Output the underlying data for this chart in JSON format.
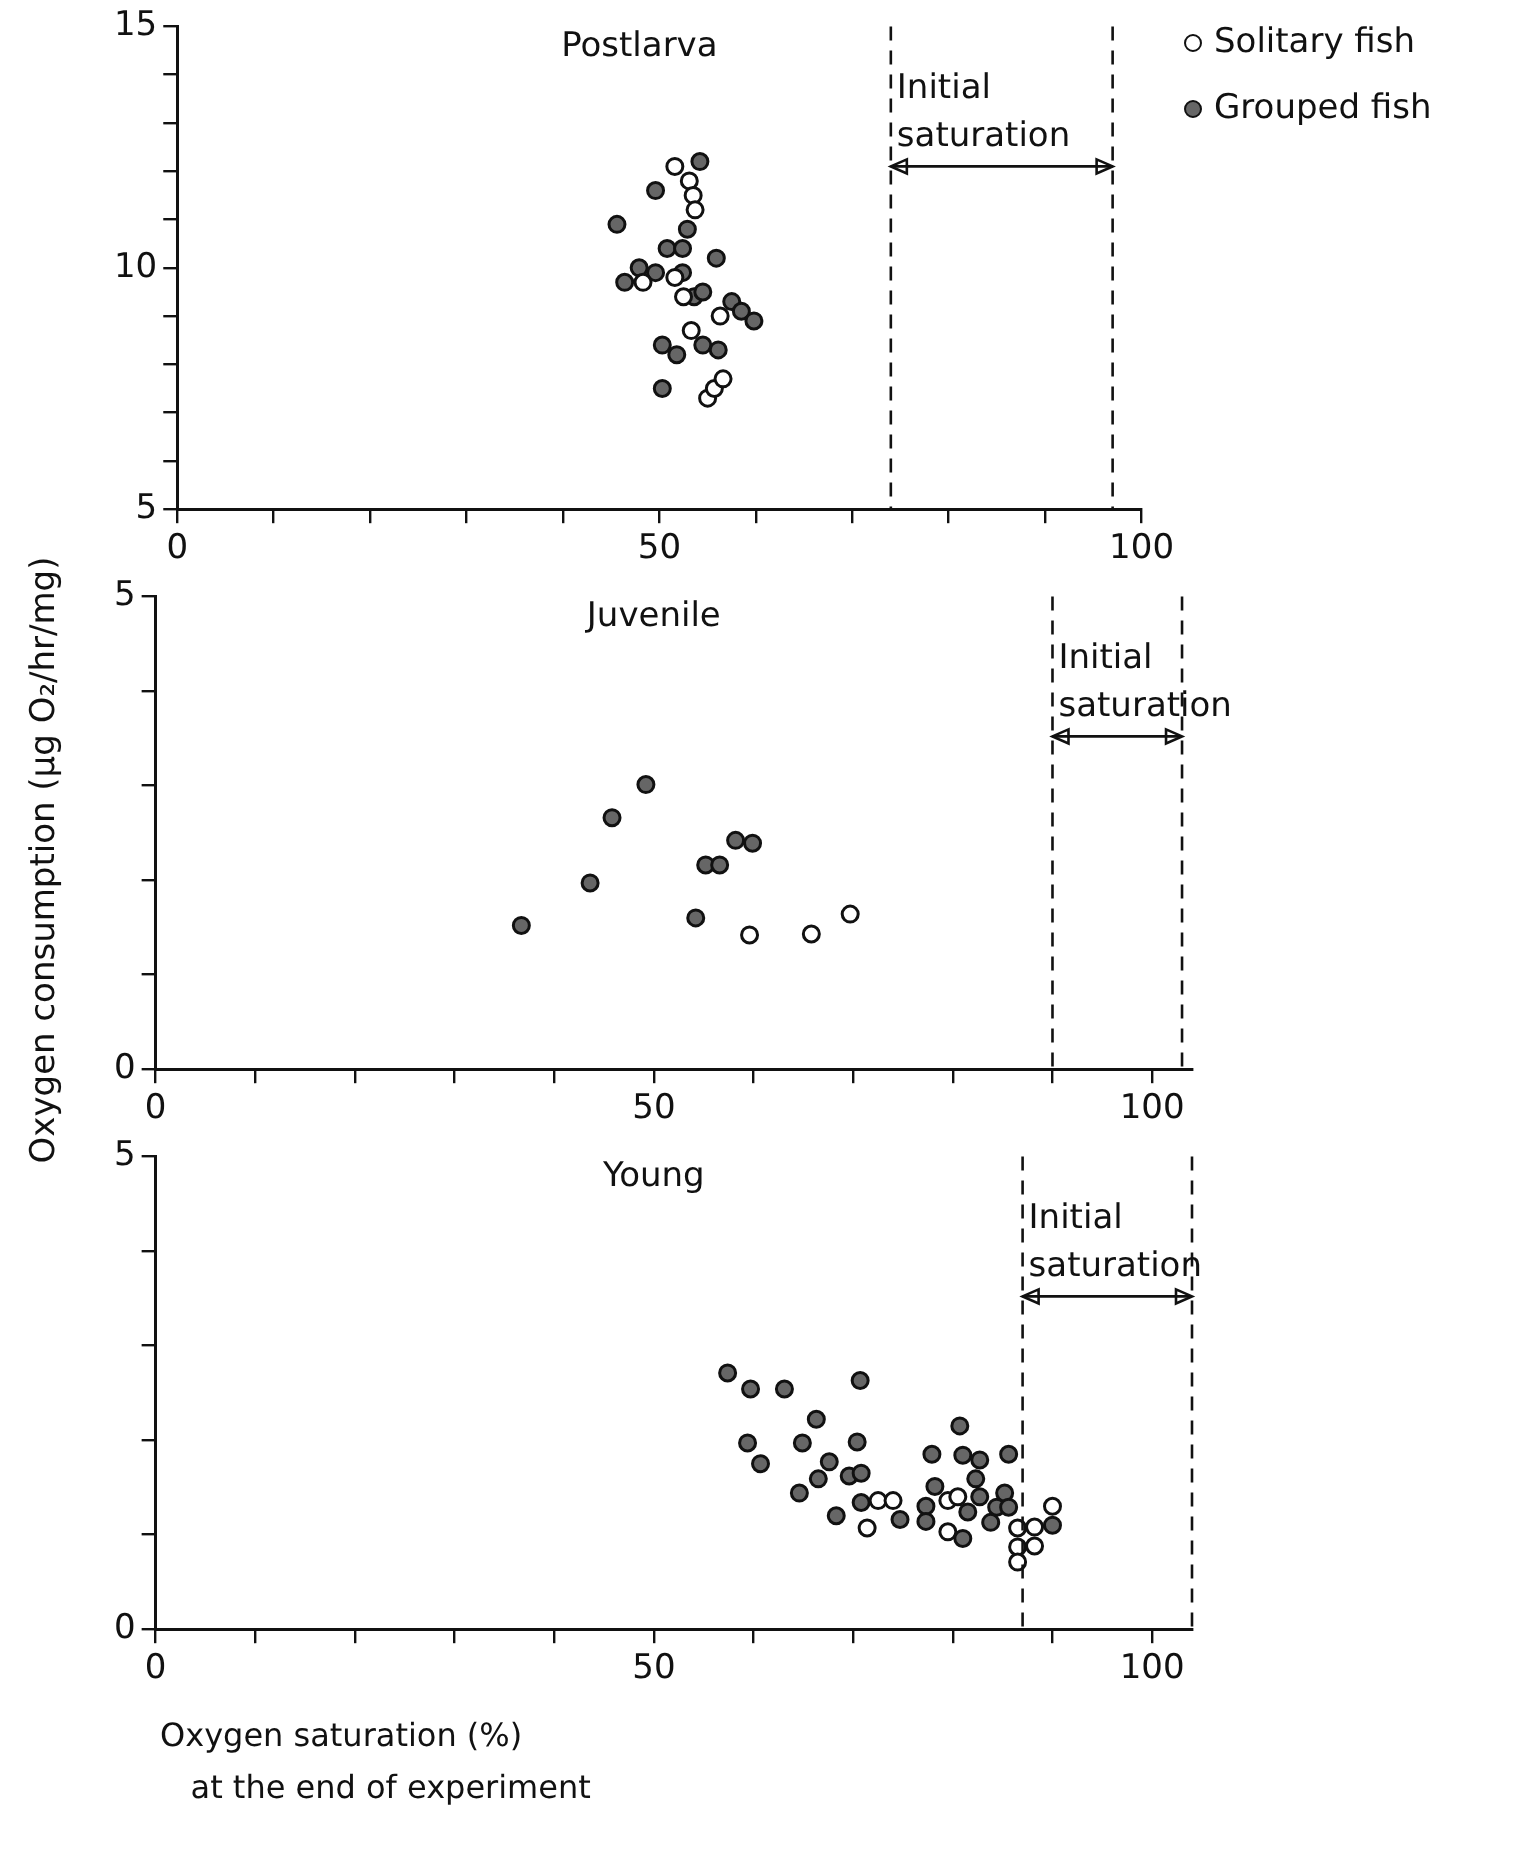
{
  "chart_data": [
    {
      "type": "scatter",
      "title": "Postlarva",
      "marker": "circle",
      "legend": "top right",
      "xlim": [
        0,
        100
      ],
      "xticks": [
        0,
        {
          "value": 10,
          "label": null
        },
        {
          "value": 20,
          "label": null
        },
        {
          "value": 30,
          "label": null
        },
        {
          "value": 40,
          "label": null
        },
        50,
        {
          "value": 60,
          "label": null
        },
        {
          "value": 70,
          "label": null
        },
        {
          "value": 80,
          "label": null
        },
        {
          "value": 90,
          "label": null
        },
        100
      ],
      "ylim": [
        5,
        15
      ],
      "yticks": [
        5,
        {
          "value": 6,
          "label": null
        },
        {
          "value": 7,
          "label": null
        },
        {
          "value": 8,
          "label": null
        },
        {
          "value": 9,
          "label": null
        },
        10,
        {
          "value": 11,
          "label": null
        },
        {
          "value": 12,
          "label": null
        },
        {
          "value": 13,
          "label": null
        },
        {
          "value": 14,
          "label": null
        },
        15
      ],
      "ref_lines": [
        {
          "axis": "x",
          "value": 74,
          "label": "Initial saturation",
          "line_style": "dashed"
        },
        {
          "axis": "x",
          "value": 97,
          "line_style": "dashed"
        }
      ],
      "series": [
        {
          "name": "Solitary fish",
          "color": "#ffffff",
          "x": [
            51.6,
            53.1,
            53.5,
            53.7,
            48.3,
            51.6,
            52.5,
            56.3,
            53.3,
            55.0,
            55.7,
            56.6
          ],
          "values": [
            12.1,
            11.8,
            11.5,
            11.2,
            9.7,
            9.8,
            9.4,
            9.0,
            8.7,
            7.3,
            7.5,
            7.7
          ]
        },
        {
          "name": "Grouped fish",
          "color": "#666666",
          "x": [
            54.2,
            49.6,
            45.6,
            52.9,
            50.8,
            52.4,
            55.9,
            47.9,
            49.6,
            46.4,
            52.4,
            53.6,
            54.5,
            57.5,
            58.5,
            59.8,
            50.3,
            51.8,
            54.5,
            56.1,
            50.3
          ],
          "values": [
            12.2,
            11.6,
            10.9,
            10.8,
            10.4,
            10.4,
            10.2,
            10.0,
            9.9,
            9.7,
            9.9,
            9.4,
            9.5,
            9.3,
            9.1,
            8.9,
            8.4,
            8.2,
            8.4,
            8.3,
            7.5
          ]
        }
      ]
    },
    {
      "type": "scatter",
      "title": "Juvenile",
      "marker": "circle",
      "ylabel": "Oxygen consumption (μg O₂/hr/mg)",
      "xlim": [
        0,
        104
      ],
      "xticks": [
        0,
        {
          "value": 10,
          "label": null
        },
        {
          "value": 20,
          "label": null
        },
        {
          "value": 30,
          "label": null
        },
        {
          "value": 40,
          "label": null
        },
        50,
        {
          "value": 60,
          "label": null
        },
        {
          "value": 70,
          "label": null
        },
        {
          "value": 80,
          "label": null
        },
        {
          "value": 90,
          "label": null
        },
        100
      ],
      "ylim": [
        0,
        5
      ],
      "yticks": [
        0,
        {
          "value": 1,
          "label": null
        },
        {
          "value": 2,
          "label": null
        },
        {
          "value": 3,
          "label": null
        },
        {
          "value": 4,
          "label": null
        },
        5
      ],
      "ref_lines": [
        {
          "axis": "x",
          "value": 90,
          "label": "Initial saturation",
          "line_style": "dashed"
        },
        {
          "axis": "x",
          "value": 103,
          "line_style": "dashed"
        }
      ],
      "series": [
        {
          "color": "#ffffff",
          "x": [
            59.6,
            65.8,
            69.7
          ],
          "values": [
            1.42,
            1.43,
            1.64
          ]
        },
        {
          "color": "#666666",
          "x": [
            36.7,
            43.6,
            45.8,
            49.2,
            55.2,
            56.6,
            58.2,
            59.9,
            54.2
          ],
          "values": [
            1.52,
            1.97,
            2.66,
            3.01,
            2.16,
            2.16,
            2.42,
            2.39,
            1.6
          ]
        }
      ]
    },
    {
      "type": "scatter",
      "title": "Young",
      "marker": "circle",
      "xlabel": "Oxygen saturation (%)\n   at the end of experiment",
      "xlim": [
        0,
        104
      ],
      "xticks": [
        0,
        {
          "value": 10,
          "label": null
        },
        {
          "value": 20,
          "label": null
        },
        {
          "value": 30,
          "label": null
        },
        {
          "value": 40,
          "label": null
        },
        50,
        {
          "value": 60,
          "label": null
        },
        {
          "value": 70,
          "label": null
        },
        {
          "value": 80,
          "label": null
        },
        {
          "value": 90,
          "label": null
        },
        100
      ],
      "ylim": [
        0,
        5
      ],
      "yticks": [
        0,
        {
          "value": 1,
          "label": null
        },
        {
          "value": 2,
          "label": null
        },
        {
          "value": 3,
          "label": null
        },
        {
          "value": 4,
          "label": null
        },
        5
      ],
      "ref_lines": [
        {
          "axis": "x",
          "value": 87,
          "label": "Initial saturation",
          "line_style": "dashed"
        },
        {
          "axis": "x",
          "value": 104,
          "line_style": "dashed"
        }
      ],
      "series": [
        {
          "color": "#ffffff",
          "x": [
            72.5,
            74.0,
            71.4,
            79.5,
            80.5,
            79.5,
            86.5,
            86.5,
            86.5,
            88.2,
            88.2,
            90.0
          ],
          "values": [
            1.36,
            1.36,
            1.07,
            1.36,
            1.4,
            1.03,
            1.07,
            0.87,
            0.71,
            1.08,
            0.88,
            1.3
          ]
        },
        {
          "color": "#666666",
          "x": [
            57.4,
            59.7,
            63.1,
            70.7,
            66.3,
            59.4,
            60.7,
            64.9,
            70.4,
            67.6,
            69.6,
            70.8,
            66.5,
            64.6,
            68.3,
            70.8,
            74.7,
            77.3,
            77.3,
            80.7,
            77.9,
            81.0,
            82.7,
            85.6,
            78.2,
            82.3,
            82.7,
            81.5,
            83.8,
            85.2,
            84.4,
            85.6,
            81.0,
            90.0
          ],
          "values": [
            2.71,
            2.54,
            2.54,
            2.63,
            2.22,
            1.97,
            1.75,
            1.97,
            1.98,
            1.77,
            1.62,
            1.65,
            1.59,
            1.44,
            1.2,
            1.34,
            1.16,
            1.3,
            1.14,
            2.15,
            1.85,
            1.84,
            1.79,
            1.85,
            1.51,
            1.59,
            1.4,
            1.24,
            1.13,
            1.44,
            1.29,
            1.29,
            0.96,
            1.1
          ]
        }
      ]
    }
  ]
}
